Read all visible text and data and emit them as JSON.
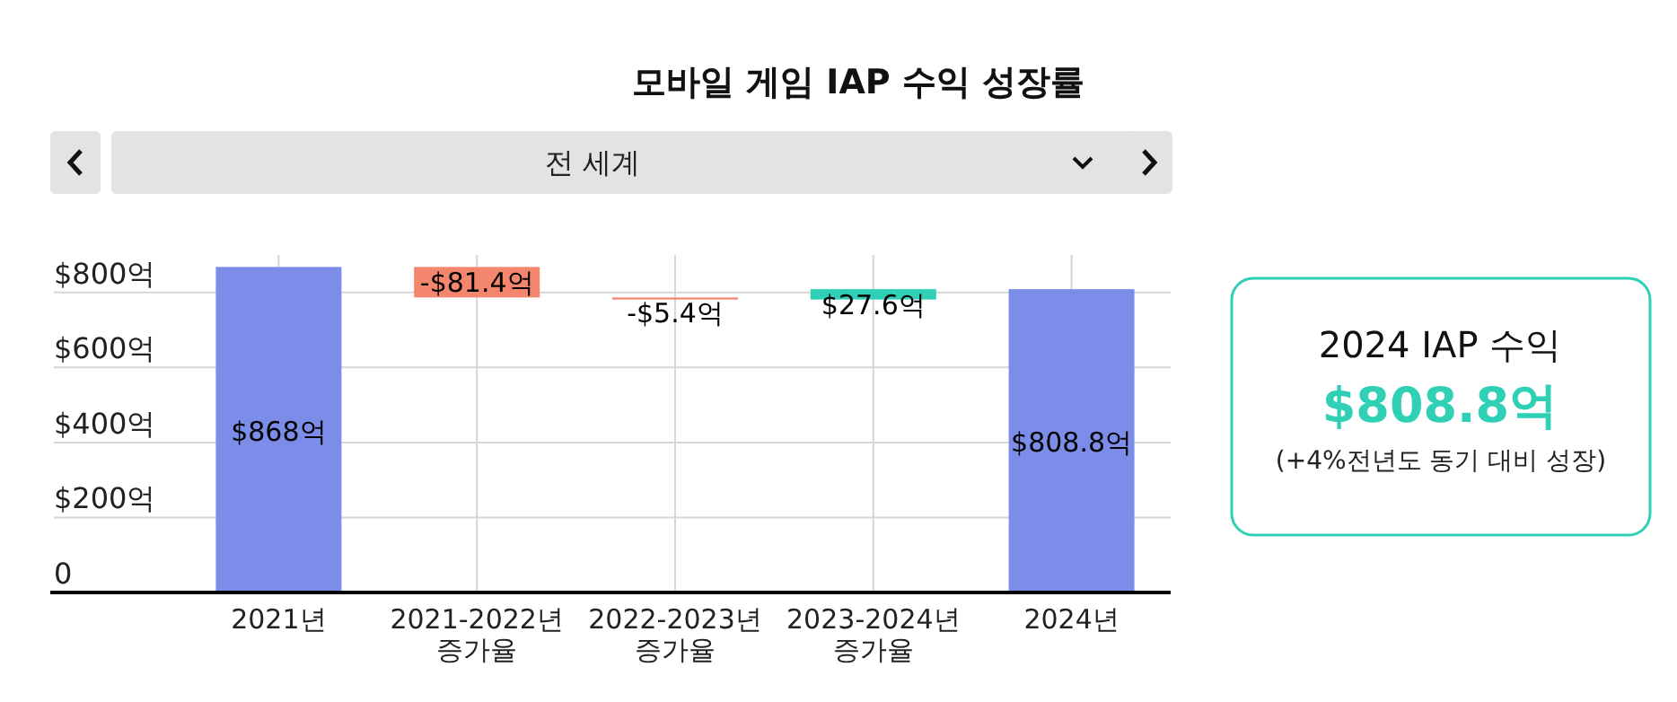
{
  "chart_data": [
    {
      "type": "bar",
      "title": "모바일 게임 IAP 수익 성장률",
      "subtitle": "전 세계",
      "categories": [
        "2021년",
        "2021-2022년 증가율",
        "2022-2023년 증가율",
        "2023-2024년 증가율",
        "2024년"
      ],
      "values": [
        868,
        -81.4,
        -5.4,
        27.6,
        808.8
      ],
      "base": [
        0,
        868,
        786.6,
        781.2,
        0
      ],
      "colors": [
        "#7b8de8",
        "#f5866e",
        "#f5866e",
        "#2fd0b5",
        "#7b8de8"
      ],
      "value_labels": [
        "$868억",
        "-$81.4억",
        "-$5.4억",
        "$27.6억",
        "$808.8억"
      ],
      "ylim": [
        0,
        900
      ],
      "yticks": [
        {
          "value": 0,
          "label": "0"
        },
        {
          "value": 200,
          "label": "$200억"
        },
        {
          "value": 400,
          "label": "$400억"
        },
        {
          "value": 600,
          "label": "$600억"
        },
        {
          "value": 800,
          "label": "$800억"
        }
      ],
      "grid": true
    },
    {
      "type": "other",
      "title": "2024 IAP 수익",
      "subtitle": "$808.8억",
      "annotations": [
        "(+4%전년도 동기 대비 성장)"
      ]
    }
  ]
}
